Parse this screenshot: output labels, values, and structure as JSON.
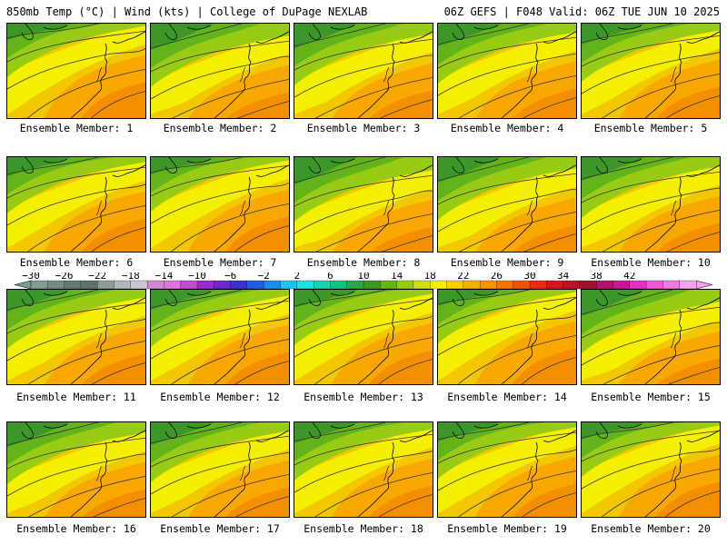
{
  "header": {
    "left": "850mb Temp (°C) | Wind (kts) | College of DuPage NEXLAB",
    "right": "06Z GEFS | F048 Valid: 06Z TUE JUN 10 2025"
  },
  "panels": [
    {
      "label": "Ensemble Member: 1"
    },
    {
      "label": "Ensemble Member: 2"
    },
    {
      "label": "Ensemble Member: 3"
    },
    {
      "label": "Ensemble Member: 4"
    },
    {
      "label": "Ensemble Member: 5"
    },
    {
      "label": "Ensemble Member: 6"
    },
    {
      "label": "Ensemble Member: 7"
    },
    {
      "label": "Ensemble Member: 8"
    },
    {
      "label": "Ensemble Member: 9"
    },
    {
      "label": "Ensemble Member: 10"
    },
    {
      "label": "Ensemble Member: 11"
    },
    {
      "label": "Ensemble Member: 12"
    },
    {
      "label": "Ensemble Member: 13"
    },
    {
      "label": "Ensemble Member: 14"
    },
    {
      "label": "Ensemble Member: 15"
    },
    {
      "label": "Ensemble Member: 16"
    },
    {
      "label": "Ensemble Member: 17"
    },
    {
      "label": "Ensemble Member: 18"
    },
    {
      "label": "Ensemble Member: 19"
    },
    {
      "label": "Ensemble Member: 20"
    }
  ],
  "colorbar": {
    "tick_labels": [
      "-30",
      "-26",
      "-22",
      "-18",
      "-14",
      "-10",
      "-6",
      "-2",
      "2",
      "6",
      "10",
      "14",
      "18",
      "22",
      "26",
      "30",
      "34",
      "38",
      "42"
    ],
    "colors": [
      "#7d9e8c",
      "#728d7e",
      "#5f7d6e",
      "#607070",
      "#8d9d9d",
      "#b0b8b8",
      "#c9c9d4",
      "#d08bd0",
      "#e074e0",
      "#c24ad4",
      "#9a2acc",
      "#6a2acc",
      "#3c32cc",
      "#1e5ee0",
      "#1a8cf0",
      "#22c2f0",
      "#22e0e0",
      "#20d0a8",
      "#1ac080",
      "#28a846",
      "#3c9628",
      "#62b41a",
      "#98cc14",
      "#d2e00a",
      "#f4f000",
      "#f8d000",
      "#f8b000",
      "#f89400",
      "#f47400",
      "#f05000",
      "#e82818",
      "#d41420",
      "#b81428",
      "#9c1428",
      "#b0146c",
      "#c81496",
      "#e032c2",
      "#f05ad8",
      "#f07ae0",
      "#f4a4ec"
    ]
  }
}
